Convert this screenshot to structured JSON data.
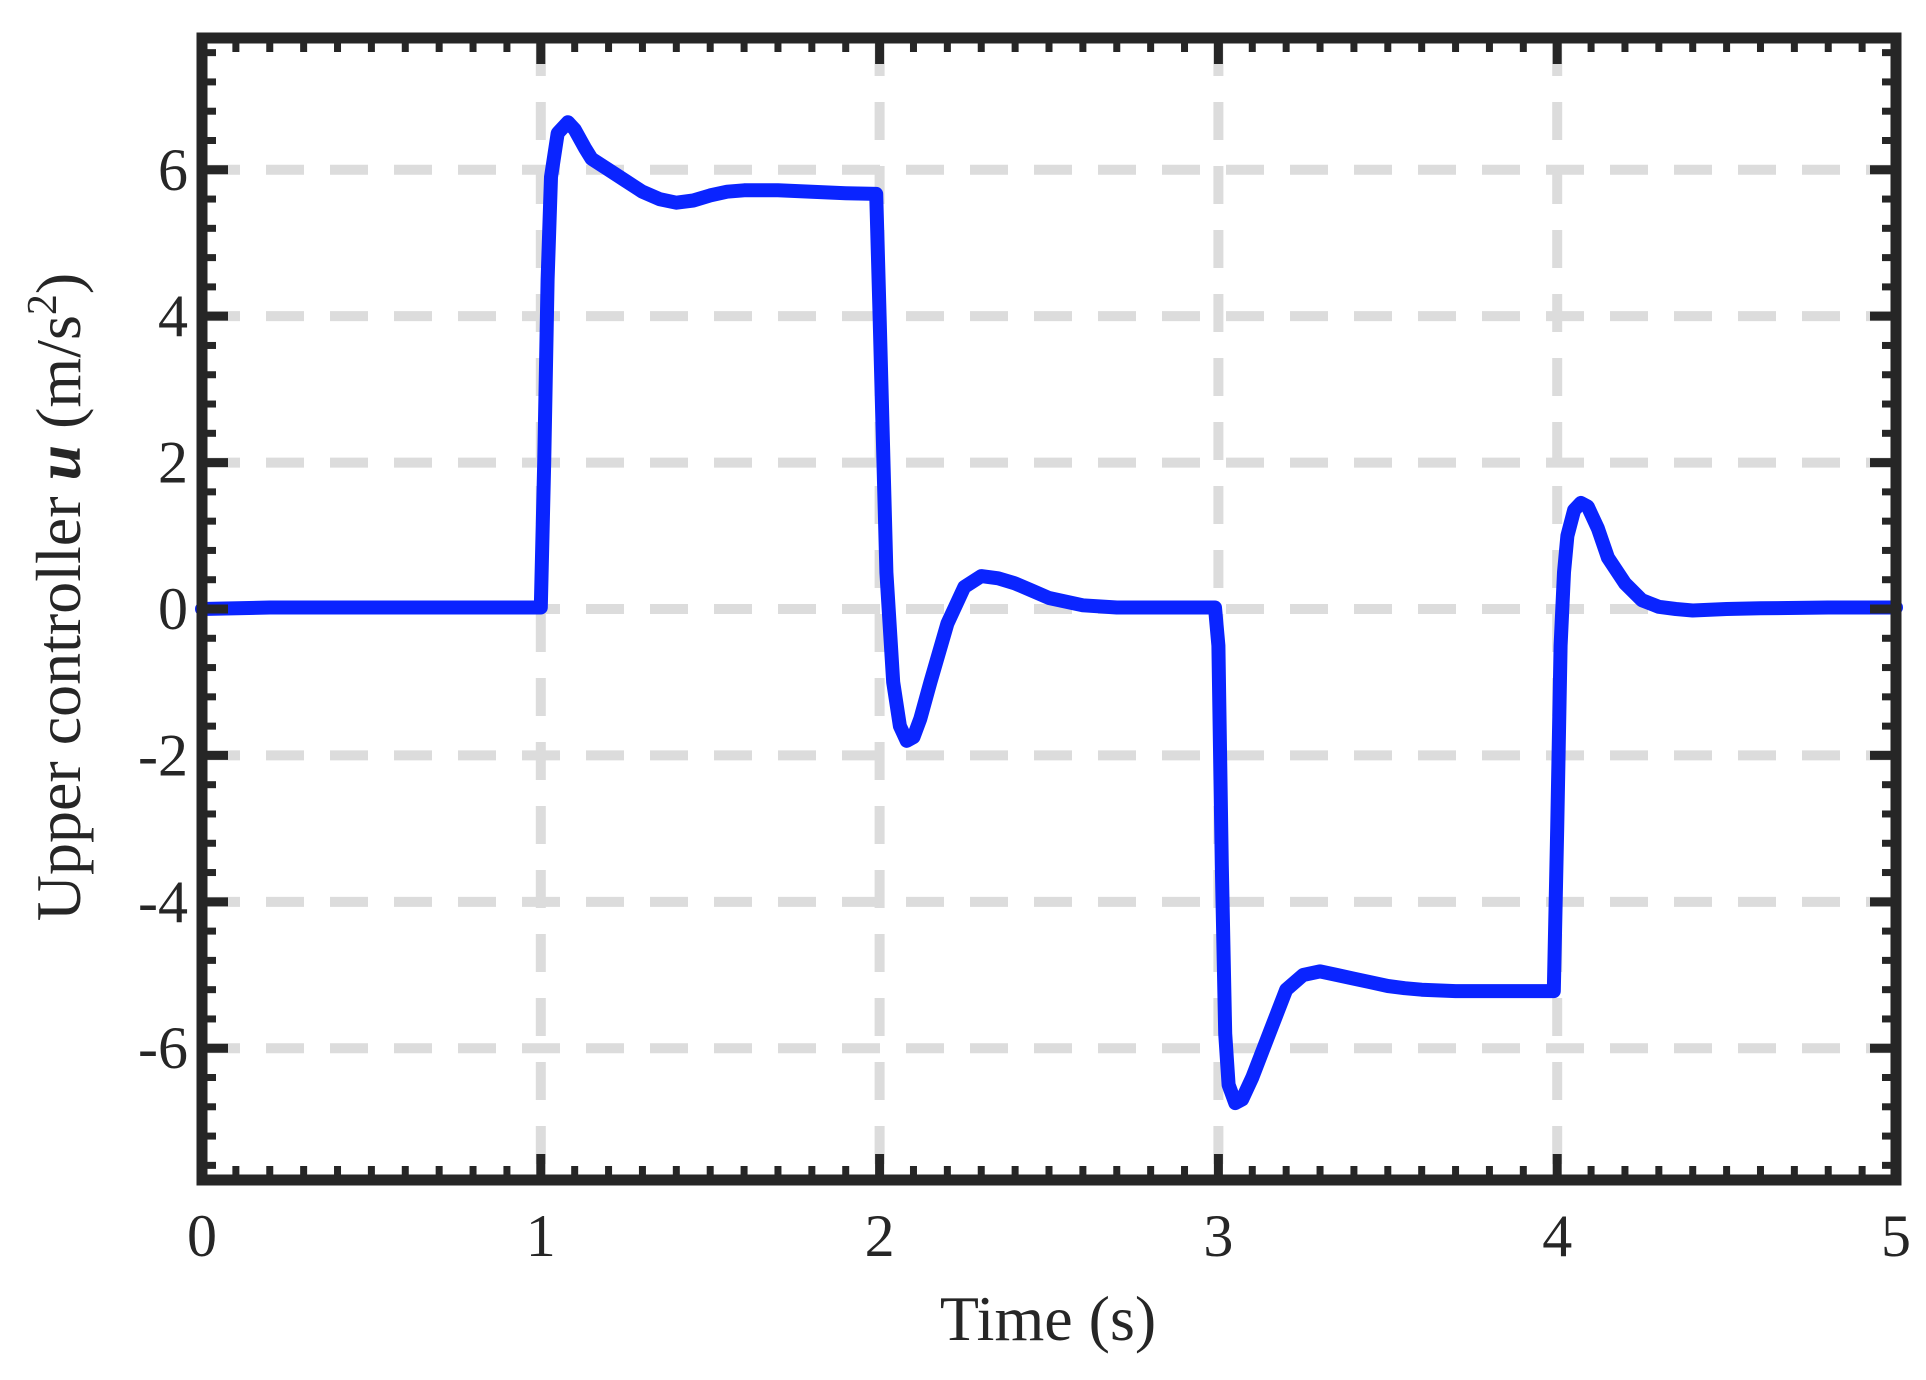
{
  "chart_data": {
    "type": "line",
    "title": "",
    "xlabel": "Time (s)",
    "ylabel": {
      "prefix": "Upper controller ",
      "variable": "u",
      "unit_open": " (m/s",
      "unit_exponent": "2",
      "unit_close": ")"
    },
    "xlim": [
      0,
      5
    ],
    "ylim": [
      -7.8,
      7.8
    ],
    "xticks": [
      0,
      1,
      2,
      3,
      4,
      5
    ],
    "xtick_labels": [
      "0",
      "1",
      "2",
      "3",
      "4",
      "5"
    ],
    "yticks": [
      -6,
      -4,
      -2,
      0,
      2,
      4,
      6
    ],
    "ytick_labels": [
      "-6",
      "-4",
      "-2",
      "0",
      "2",
      "4",
      "6"
    ],
    "grid": "dashed",
    "legend": "none",
    "colors": {
      "line": "#0a24ff",
      "grid": "#dcdcdc",
      "axes": "#262626"
    },
    "series": [
      {
        "x": [
          0,
          0.2,
          0.5,
          0.8,
          0.99,
          1.0,
          1.01,
          1.02,
          1.03,
          1.05,
          1.08,
          1.1,
          1.13,
          1.15,
          1.2,
          1.25,
          1.3,
          1.35,
          1.4,
          1.45,
          1.5,
          1.55,
          1.6,
          1.7,
          1.8,
          1.9,
          1.99,
          2.0,
          2.02,
          2.04,
          2.06,
          2.08,
          2.1,
          2.12,
          2.15,
          2.2,
          2.25,
          2.3,
          2.35,
          2.4,
          2.45,
          2.5,
          2.6,
          2.7,
          2.8,
          2.9,
          2.99,
          3.0,
          3.01,
          3.02,
          3.03,
          3.05,
          3.07,
          3.1,
          3.15,
          3.2,
          3.25,
          3.3,
          3.35,
          3.4,
          3.45,
          3.5,
          3.55,
          3.6,
          3.7,
          3.8,
          3.9,
          3.99,
          4.0,
          4.01,
          4.02,
          4.03,
          4.05,
          4.07,
          4.09,
          4.1,
          4.12,
          4.15,
          4.2,
          4.25,
          4.3,
          4.35,
          4.4,
          4.45,
          4.5,
          4.6,
          4.8,
          5.0
        ],
        "y": [
          0,
          0.02,
          0.02,
          0.02,
          0.02,
          0.02,
          2.0,
          4.5,
          5.9,
          6.5,
          6.65,
          6.55,
          6.3,
          6.15,
          6.0,
          5.85,
          5.7,
          5.6,
          5.55,
          5.58,
          5.65,
          5.7,
          5.72,
          5.72,
          5.7,
          5.68,
          5.67,
          4.0,
          0.5,
          -1.0,
          -1.6,
          -1.8,
          -1.75,
          -1.5,
          -1.0,
          -0.2,
          0.3,
          0.45,
          0.42,
          0.35,
          0.25,
          0.15,
          0.05,
          0.02,
          0.02,
          0.02,
          0.02,
          -0.5,
          -3.5,
          -5.8,
          -6.5,
          -6.75,
          -6.7,
          -6.4,
          -5.8,
          -5.2,
          -5.0,
          -4.95,
          -5.0,
          -5.05,
          -5.1,
          -5.15,
          -5.18,
          -5.2,
          -5.22,
          -5.22,
          -5.22,
          -5.22,
          -3.0,
          -0.5,
          0.5,
          1.0,
          1.35,
          1.45,
          1.4,
          1.3,
          1.1,
          0.7,
          0.35,
          0.12,
          0.03,
          0.0,
          -0.02,
          -0.01,
          0.0,
          0.01,
          0.02,
          0.02
        ]
      }
    ]
  }
}
